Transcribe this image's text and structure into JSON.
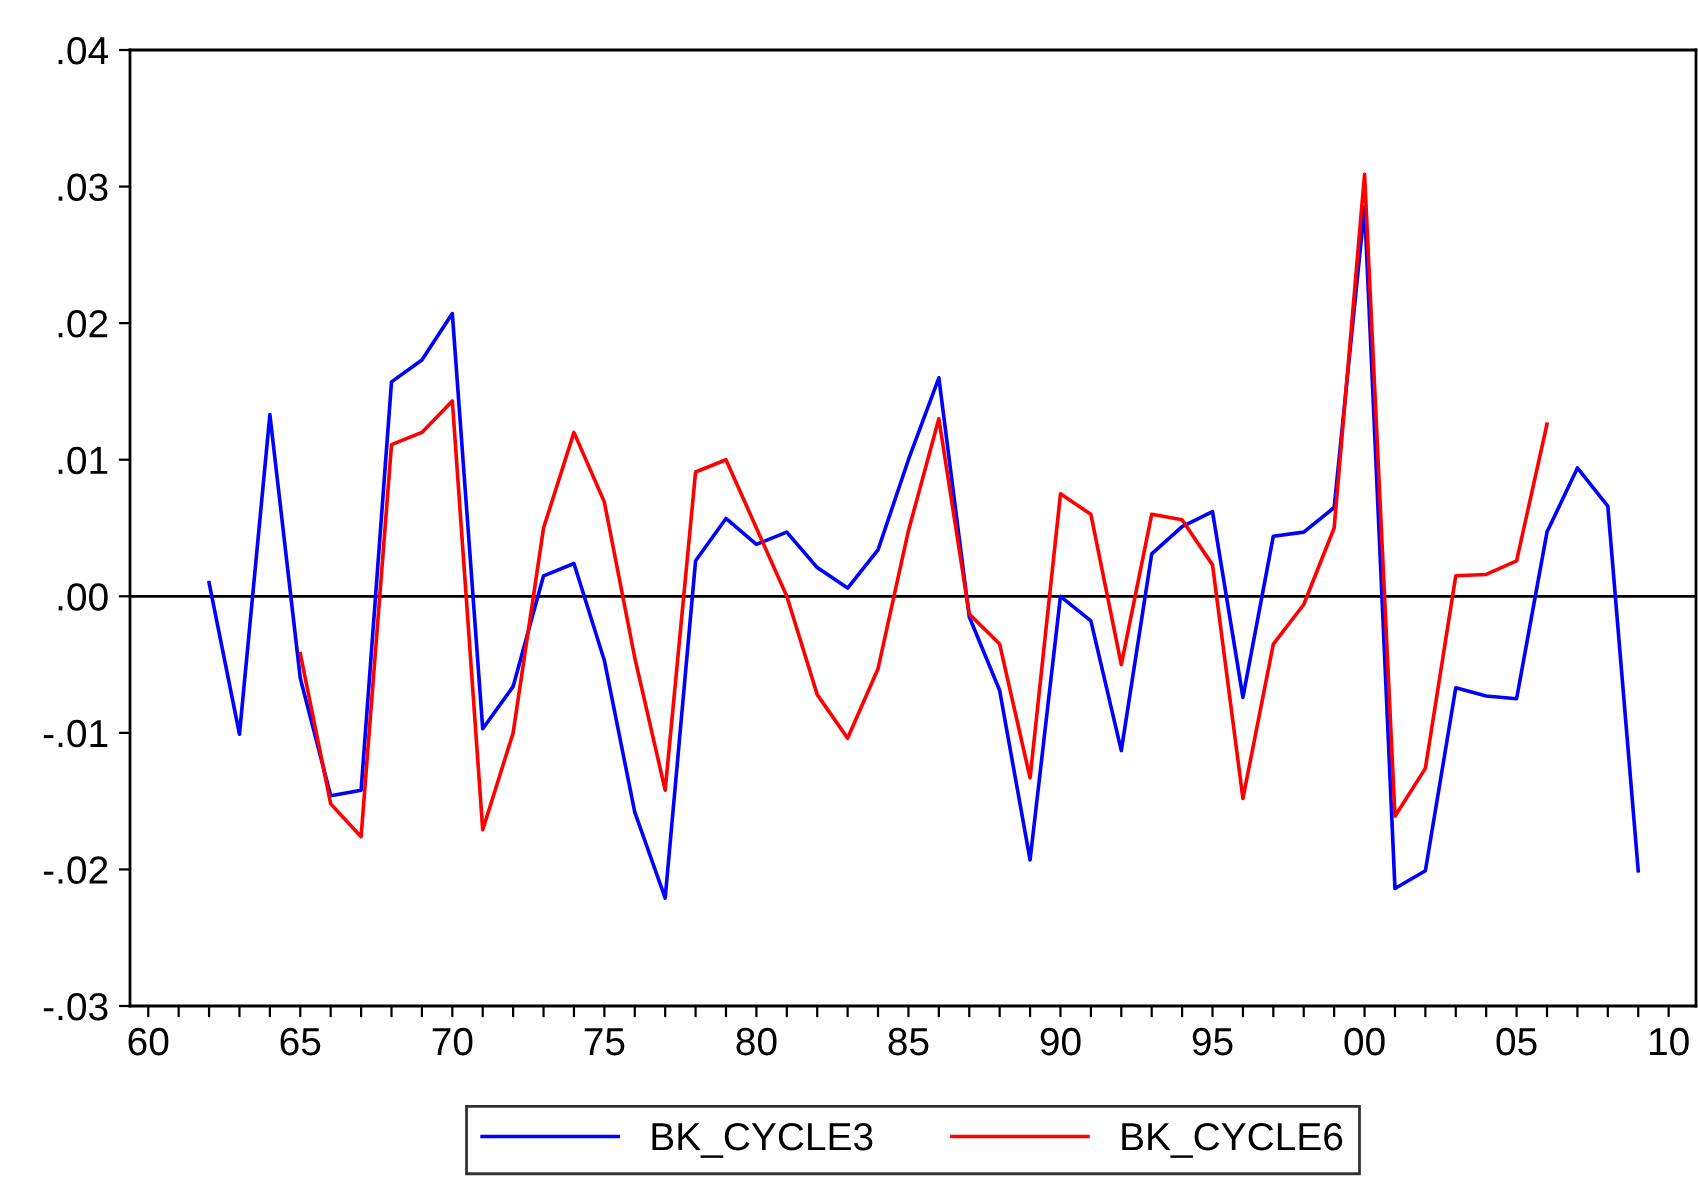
{
  "chart_data": {
    "type": "line",
    "x": [
      1962,
      1963,
      1964,
      1965,
      1966,
      1967,
      1968,
      1969,
      1970,
      1971,
      1972,
      1973,
      1974,
      1975,
      1976,
      1977,
      1978,
      1979,
      1980,
      1981,
      1982,
      1983,
      1984,
      1985,
      1986,
      1987,
      1988,
      1989,
      1990,
      1991,
      1992,
      1993,
      1994,
      1995,
      1996,
      1997,
      1998,
      1999,
      2000,
      2001,
      2002,
      2003,
      2004,
      2005,
      2006,
      2007,
      2008,
      2009
    ],
    "series": [
      {
        "name": "BK_CYCLE3",
        "color": "#0000ff",
        "values": [
          0.001,
          -0.0101,
          0.0133,
          -0.006,
          -0.0146,
          -0.0142,
          0.0157,
          0.0173,
          0.0207,
          -0.0097,
          -0.0066,
          0.0015,
          0.0024,
          -0.0047,
          -0.0158,
          -0.0221,
          0.0026,
          0.0057,
          0.0038,
          0.0047,
          0.0021,
          0.0006,
          0.0034,
          0.01,
          0.016,
          -0.0015,
          -0.0069,
          -0.0193,
          0.0,
          -0.0018,
          -0.0113,
          0.0031,
          0.0051,
          0.0062,
          -0.0074,
          0.0044,
          0.0047,
          0.0065,
          0.0285,
          -0.0214,
          -0.0201,
          -0.0067,
          -0.0073,
          -0.0075,
          0.0047,
          0.0094,
          0.0066,
          -0.0201
        ]
      },
      {
        "name": "BK_CYCLE6",
        "color": "#ff0000",
        "values": [
          null,
          null,
          null,
          -0.0042,
          -0.0152,
          -0.0176,
          0.0111,
          0.012,
          0.0143,
          -0.0171,
          -0.01,
          0.005,
          0.012,
          0.0069,
          -0.0045,
          -0.0142,
          0.0091,
          0.01,
          0.005,
          0.0,
          -0.0072,
          -0.0104,
          -0.0053,
          0.0048,
          0.013,
          -0.0013,
          -0.0035,
          -0.0133,
          0.0075,
          0.006,
          -0.005,
          0.006,
          0.0056,
          0.0023,
          -0.0148,
          -0.0035,
          -0.0006,
          0.005,
          0.0309,
          -0.0161,
          -0.0126,
          0.0015,
          0.0016,
          0.0026,
          0.0126,
          null,
          null,
          null
        ]
      }
    ],
    "xlim": [
      1959.4,
      2010.9
    ],
    "xticks": [
      {
        "value": 1960,
        "label": "60"
      },
      {
        "value": 1961,
        "label": null
      },
      {
        "value": 1962,
        "label": null
      },
      {
        "value": 1963,
        "label": null
      },
      {
        "value": 1964,
        "label": null
      },
      {
        "value": 1965,
        "label": "65"
      },
      {
        "value": 1966,
        "label": null
      },
      {
        "value": 1967,
        "label": null
      },
      {
        "value": 1968,
        "label": null
      },
      {
        "value": 1969,
        "label": null
      },
      {
        "value": 1970,
        "label": "70"
      },
      {
        "value": 1971,
        "label": null
      },
      {
        "value": 1972,
        "label": null
      },
      {
        "value": 1973,
        "label": null
      },
      {
        "value": 1974,
        "label": null
      },
      {
        "value": 1975,
        "label": "75"
      },
      {
        "value": 1976,
        "label": null
      },
      {
        "value": 1977,
        "label": null
      },
      {
        "value": 1978,
        "label": null
      },
      {
        "value": 1979,
        "label": null
      },
      {
        "value": 1980,
        "label": "80"
      },
      {
        "value": 1981,
        "label": null
      },
      {
        "value": 1982,
        "label": null
      },
      {
        "value": 1983,
        "label": null
      },
      {
        "value": 1984,
        "label": null
      },
      {
        "value": 1985,
        "label": "85"
      },
      {
        "value": 1986,
        "label": null
      },
      {
        "value": 1987,
        "label": null
      },
      {
        "value": 1988,
        "label": null
      },
      {
        "value": 1989,
        "label": null
      },
      {
        "value": 1990,
        "label": "90"
      },
      {
        "value": 1991,
        "label": null
      },
      {
        "value": 1992,
        "label": null
      },
      {
        "value": 1993,
        "label": null
      },
      {
        "value": 1994,
        "label": null
      },
      {
        "value": 1995,
        "label": "95"
      },
      {
        "value": 1996,
        "label": null
      },
      {
        "value": 1997,
        "label": null
      },
      {
        "value": 1998,
        "label": null
      },
      {
        "value": 1999,
        "label": null
      },
      {
        "value": 2000,
        "label": "00"
      },
      {
        "value": 2001,
        "label": null
      },
      {
        "value": 2002,
        "label": null
      },
      {
        "value": 2003,
        "label": null
      },
      {
        "value": 2004,
        "label": null
      },
      {
        "value": 2005,
        "label": "05"
      },
      {
        "value": 2006,
        "label": null
      },
      {
        "value": 2007,
        "label": null
      },
      {
        "value": 2008,
        "label": null
      },
      {
        "value": 2009,
        "label": null
      },
      {
        "value": 2010,
        "label": "10"
      }
    ],
    "ylim": [
      -0.03,
      0.04
    ],
    "yticks": [
      {
        "value": -0.03,
        "label": "-.03"
      },
      {
        "value": -0.02,
        "label": "-.02"
      },
      {
        "value": -0.01,
        "label": "-.01"
      },
      {
        "value": 0,
        "label": ".00"
      },
      {
        "value": 0.01,
        "label": ".01"
      },
      {
        "value": 0.02,
        "label": ".02"
      },
      {
        "value": 0.03,
        "label": ".03"
      },
      {
        "value": 0.04,
        "label": ".04"
      }
    ],
    "ref_lines": [
      {
        "axis": "y",
        "value": 0,
        "label": null,
        "color": "#000000"
      }
    ],
    "grid": false,
    "legend": "bottom",
    "marker": "none",
    "line_style": "solid"
  }
}
